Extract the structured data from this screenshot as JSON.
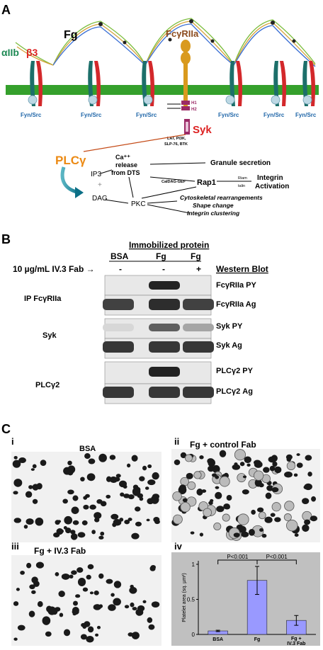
{
  "panel_a": {
    "label": "A",
    "fg": "Fg",
    "integrin_a": "αIIb",
    "integrin_b": "β3",
    "fcgr": "FcγRIIa",
    "fyn_src": "Fyn/Src",
    "h1": "H1",
    "h2": "H2",
    "syk": "Syk",
    "adaptors": [
      "LAT, PI3K,",
      "SLP-76, BTK"
    ],
    "plcg": "PLCγ",
    "ip3": "IP3",
    "ca_release": [
      "Ca⁺⁺",
      "release",
      "from DTS"
    ],
    "caldag": "CalDAG-GEF",
    "rap1": "Rap1",
    "granule": "Granule secretion",
    "riam": "Riam",
    "talin": "talin",
    "integrin_act": [
      "Integrin",
      "Activation"
    ],
    "plus": "+",
    "dag": "DAG",
    "pkc": "PKC",
    "cytoskeletal": "Cytoskeletal rearrangements",
    "shape": "Shape change",
    "clustering": "Integrin clustering"
  },
  "panel_b": {
    "label": "B",
    "immobilized": "Immobilized protein",
    "cols": [
      "BSA",
      "Fg",
      "Fg"
    ],
    "fab_label": "10 µg/mL IV.3 Fab →",
    "fab_signs": [
      "-",
      "-",
      "+"
    ],
    "western": "Western Blot",
    "groups": [
      {
        "name": "IP FcγRIIa",
        "rows": [
          "FcγRIIa PY",
          "FcγRIIa Ag"
        ]
      },
      {
        "name": "Syk",
        "rows": [
          "Syk PY",
          "Syk Ag"
        ]
      },
      {
        "name": "PLCγ2",
        "rows": [
          "PLCγ2 PY",
          "PLCγ2 Ag"
        ]
      }
    ],
    "bands": {
      "fcgr_py": [
        0,
        1,
        0
      ],
      "fcgr_ag": [
        0.85,
        0.95,
        0.85
      ],
      "syk_py": [
        0.1,
        0.7,
        0.35
      ],
      "syk_ag": [
        0.9,
        0.9,
        0.9
      ],
      "plc_py": [
        0,
        1,
        0
      ],
      "plc_ag": [
        0.9,
        0.9,
        0.9
      ]
    }
  },
  "panel_c": {
    "label": "C",
    "images": [
      {
        "numeral": "i",
        "title": "BSA"
      },
      {
        "numeral": "ii",
        "title": "Fg + control Fab"
      },
      {
        "numeral": "iii",
        "title": "Fg + IV.3 Fab"
      }
    ],
    "chart_numeral": "iv"
  },
  "chart_data": {
    "type": "bar",
    "categories": [
      "BSA",
      "Fg",
      "Fg + IV.3 Fab"
    ],
    "values": [
      0.05,
      0.77,
      0.2
    ],
    "errors": [
      0.01,
      0.2,
      0.07
    ],
    "ylabel": "Platelet area (sq. µm²)",
    "yticks": [
      0,
      0.5,
      1
    ],
    "ylim": [
      0,
      1.05
    ],
    "annotations": [
      "P<0.001",
      "P<0.001"
    ],
    "bar_color": "#9999ff",
    "background": "#c0c0c0"
  }
}
